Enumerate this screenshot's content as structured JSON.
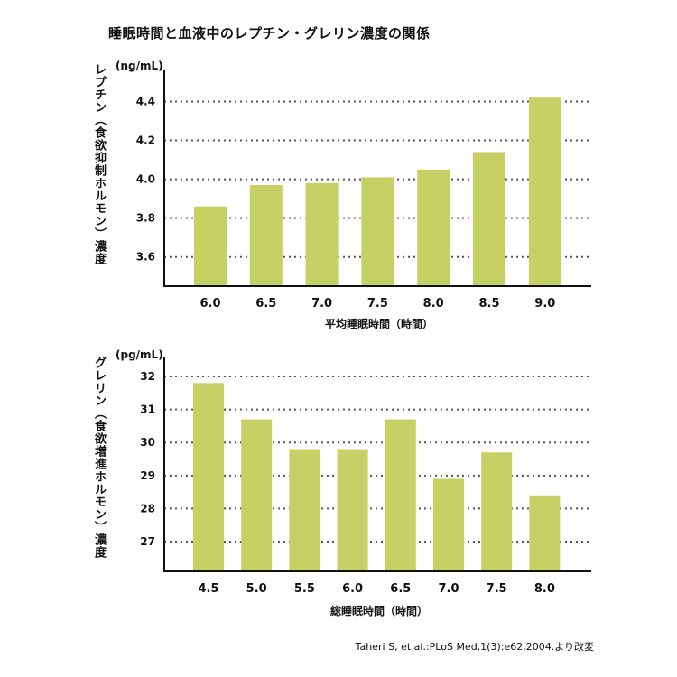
{
  "title": "睡眠時間と血液中のレプチン・グレリン濃度の関係",
  "source": "Taheri S, et al.:PLoS Med,1(3):e62,2004.より改変",
  "chart_data": [
    {
      "type": "bar",
      "ylabel": "レプチン（食欲抑制ホルモン）濃度",
      "unit": "(ng/mL)",
      "xlabel": "平均睡眠時間（時間）",
      "categories": [
        "6.0",
        "6.5",
        "7.0",
        "7.5",
        "8.0",
        "8.5",
        "9.0"
      ],
      "values": [
        3.86,
        3.97,
        3.98,
        4.01,
        4.05,
        4.14,
        4.42
      ],
      "yticks": [
        "3.6",
        "3.8",
        "4.0",
        "4.2",
        "4.4"
      ],
      "ylim": [
        3.45,
        4.56
      ],
      "grid": true,
      "bar_color": "#c6d165"
    },
    {
      "type": "bar",
      "ylabel": "グレリン（食欲増進ホルモン）濃度",
      "unit": "(pg/mL)",
      "xlabel": "総睡眠時間（時間）",
      "categories": [
        "4.5",
        "5.0",
        "5.5",
        "6.0",
        "6.5",
        "7.0",
        "7.5",
        "8.0"
      ],
      "values": [
        31.8,
        30.7,
        29.8,
        29.8,
        30.7,
        28.9,
        29.7,
        28.4
      ],
      "yticks": [
        "27",
        "28",
        "29",
        "30",
        "31",
        "32"
      ],
      "ylim": [
        26.1,
        32.6
      ],
      "grid": true,
      "bar_color": "#c6d165"
    }
  ]
}
